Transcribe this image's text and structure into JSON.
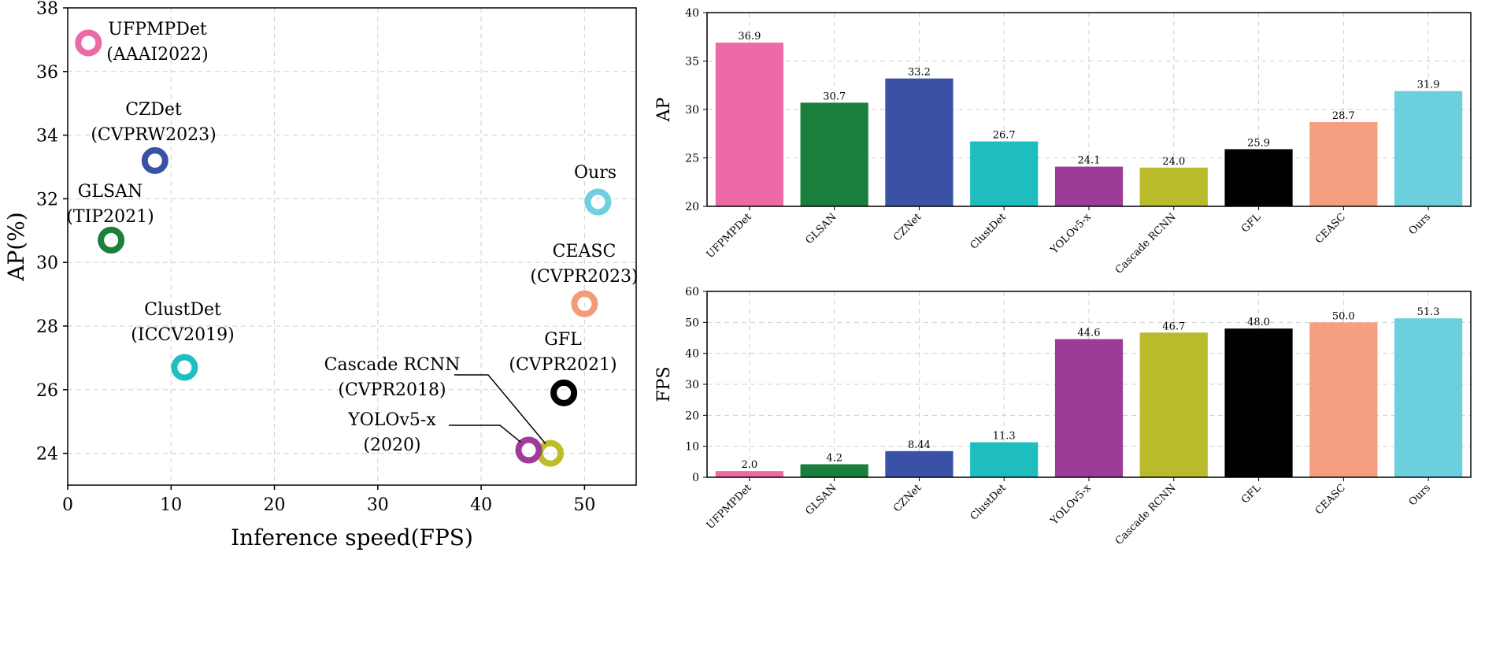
{
  "chart_data": [
    {
      "type": "scatter",
      "xlabel": "Inference speed(FPS)",
      "ylabel": "AP(%)",
      "xlim": [
        0,
        55
      ],
      "ylim": [
        23,
        38
      ],
      "xticks": [
        0,
        10,
        20,
        30,
        40,
        50
      ],
      "yticks": [
        24,
        26,
        28,
        30,
        32,
        34,
        36,
        38
      ],
      "grid": true,
      "points": [
        {
          "name": "UFPMPDet",
          "venue": "(AAAI2022)",
          "x": 2.0,
          "y": 36.9,
          "color": "#ea6aa8"
        },
        {
          "name": "CZDet",
          "venue": "(CVPRW2023)",
          "x": 8.44,
          "y": 33.2,
          "color": "#3a52a6"
        },
        {
          "name": "GLSAN",
          "venue": "(TIP2021)",
          "x": 4.2,
          "y": 30.7,
          "color": "#1c7f3c"
        },
        {
          "name": "ClustDet",
          "venue": "(ICCV2019)",
          "x": 11.3,
          "y": 26.7,
          "color": "#20bfbf"
        },
        {
          "name": "Ours",
          "venue": "",
          "x": 51.3,
          "y": 31.9,
          "color": "#6fcfe0"
        },
        {
          "name": "CEASC",
          "venue": "(CVPR2023)",
          "x": 50.0,
          "y": 28.7,
          "color": "#f29b7a"
        },
        {
          "name": "GFL",
          "venue": "(CVPR2021)",
          "x": 48.0,
          "y": 25.9,
          "color": "#000000"
        },
        {
          "name": "Cascade RCNN",
          "venue": "(CVPR2018)",
          "x": 46.7,
          "y": 24.0,
          "color": "#bdbd2a"
        },
        {
          "name": "YOLOv5-x",
          "venue": "(2020)",
          "x": 44.6,
          "y": 24.1,
          "color": "#a03b9c"
        }
      ]
    },
    {
      "type": "bar",
      "ylabel": "AP",
      "ylim": [
        20,
        40
      ],
      "yticks": [
        20,
        25,
        30,
        35,
        40
      ],
      "grid": true,
      "categories": [
        "UFPMPDet",
        "GLSAN",
        "CZNet",
        "ClustDet",
        "YOLOv5-x",
        "Cascade RCNN",
        "GFL",
        "CEASC",
        "Ours"
      ],
      "values": [
        36.9,
        30.7,
        33.2,
        26.7,
        24.1,
        24.0,
        25.9,
        28.7,
        31.9
      ],
      "labels": [
        "36.9",
        "30.7",
        "33.2",
        "26.7",
        "24.1",
        "24.0",
        "25.9",
        "28.7",
        "31.9"
      ],
      "colors": [
        "#ec6aa6",
        "#1a7f3c",
        "#3a52a6",
        "#1fbdbd",
        "#9d3b98",
        "#b9ba2c",
        "#000000",
        "#f59f80",
        "#6ccfdd"
      ]
    },
    {
      "type": "bar",
      "ylabel": "FPS",
      "ylim": [
        0,
        60
      ],
      "yticks": [
        0,
        10,
        20,
        30,
        40,
        50,
        60
      ],
      "grid": true,
      "categories": [
        "UFPMPDet",
        "GLSAN",
        "CZNet",
        "ClustDet",
        "YOLOv5-x",
        "Cascade RCNN",
        "GFL",
        "CEASC",
        "Ours"
      ],
      "values": [
        2.0,
        4.2,
        8.44,
        11.3,
        44.6,
        46.7,
        48.0,
        50.0,
        51.3
      ],
      "labels": [
        "2.0",
        "4.2",
        "8.44",
        "11.3",
        "44.6",
        "46.7",
        "48.0",
        "50.0",
        "51.3"
      ],
      "colors": [
        "#ec6aa6",
        "#1a7f3c",
        "#3a52a6",
        "#1fbdbd",
        "#9d3b98",
        "#b9ba2c",
        "#000000",
        "#f59f80",
        "#6ccfdd"
      ]
    }
  ]
}
